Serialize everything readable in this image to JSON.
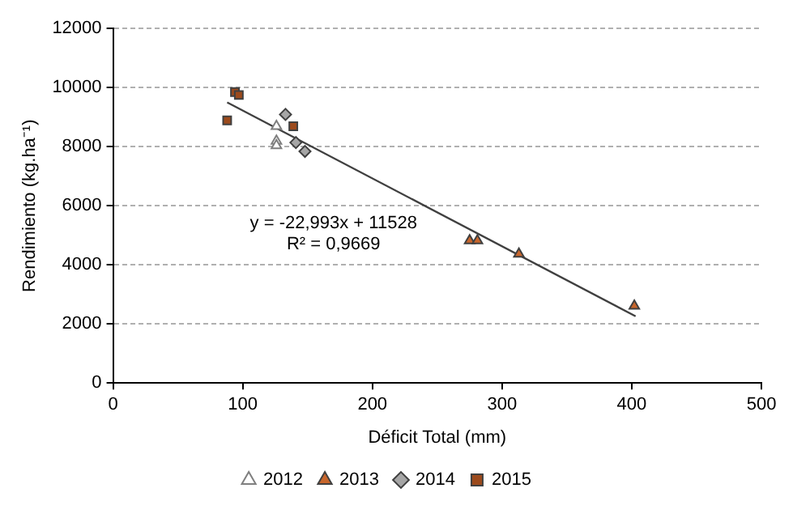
{
  "chart_data": {
    "type": "scatter",
    "xlabel": "Déficit Total (mm)",
    "ylabel": "Rendimiento (kg.ha⁻¹)",
    "xlim": [
      0,
      500
    ],
    "xticks": [
      0,
      100,
      200,
      300,
      400,
      500
    ],
    "ylim": [
      0,
      12000
    ],
    "yticks": [
      0,
      2000,
      4000,
      6000,
      8000,
      10000,
      12000
    ],
    "grid": "y",
    "legend": "bottom",
    "annotations": [
      "y = -22,993x + 11528",
      "R² = 0,9669"
    ],
    "series": [
      {
        "name": "2012",
        "color": "#ffffff",
        "marker": "triangle",
        "x": [
          126,
          126,
          126
        ],
        "values": [
          8690,
          8190,
          8040
        ]
      },
      {
        "name": "2013",
        "color": "#c8662c",
        "marker": "triangle",
        "x": [
          275,
          281,
          313,
          402
        ],
        "values": [
          4820,
          4820,
          4370,
          2610
        ]
      },
      {
        "name": "2014",
        "color": "#a6a6a6",
        "marker": "diamond",
        "x": [
          133,
          141,
          148
        ],
        "values": [
          9090,
          8140,
          7840
        ]
      },
      {
        "name": "2015",
        "color": "#9c4a1c",
        "marker": "square",
        "x": [
          94,
          97,
          88,
          139
        ],
        "values": [
          9850,
          9750,
          8890,
          8690
        ]
      },
      {
        "type": "line",
        "color": "#404040",
        "marker": "none",
        "x": [
          88,
          403
        ],
        "values": [
          9500,
          2260
        ]
      }
    ]
  }
}
